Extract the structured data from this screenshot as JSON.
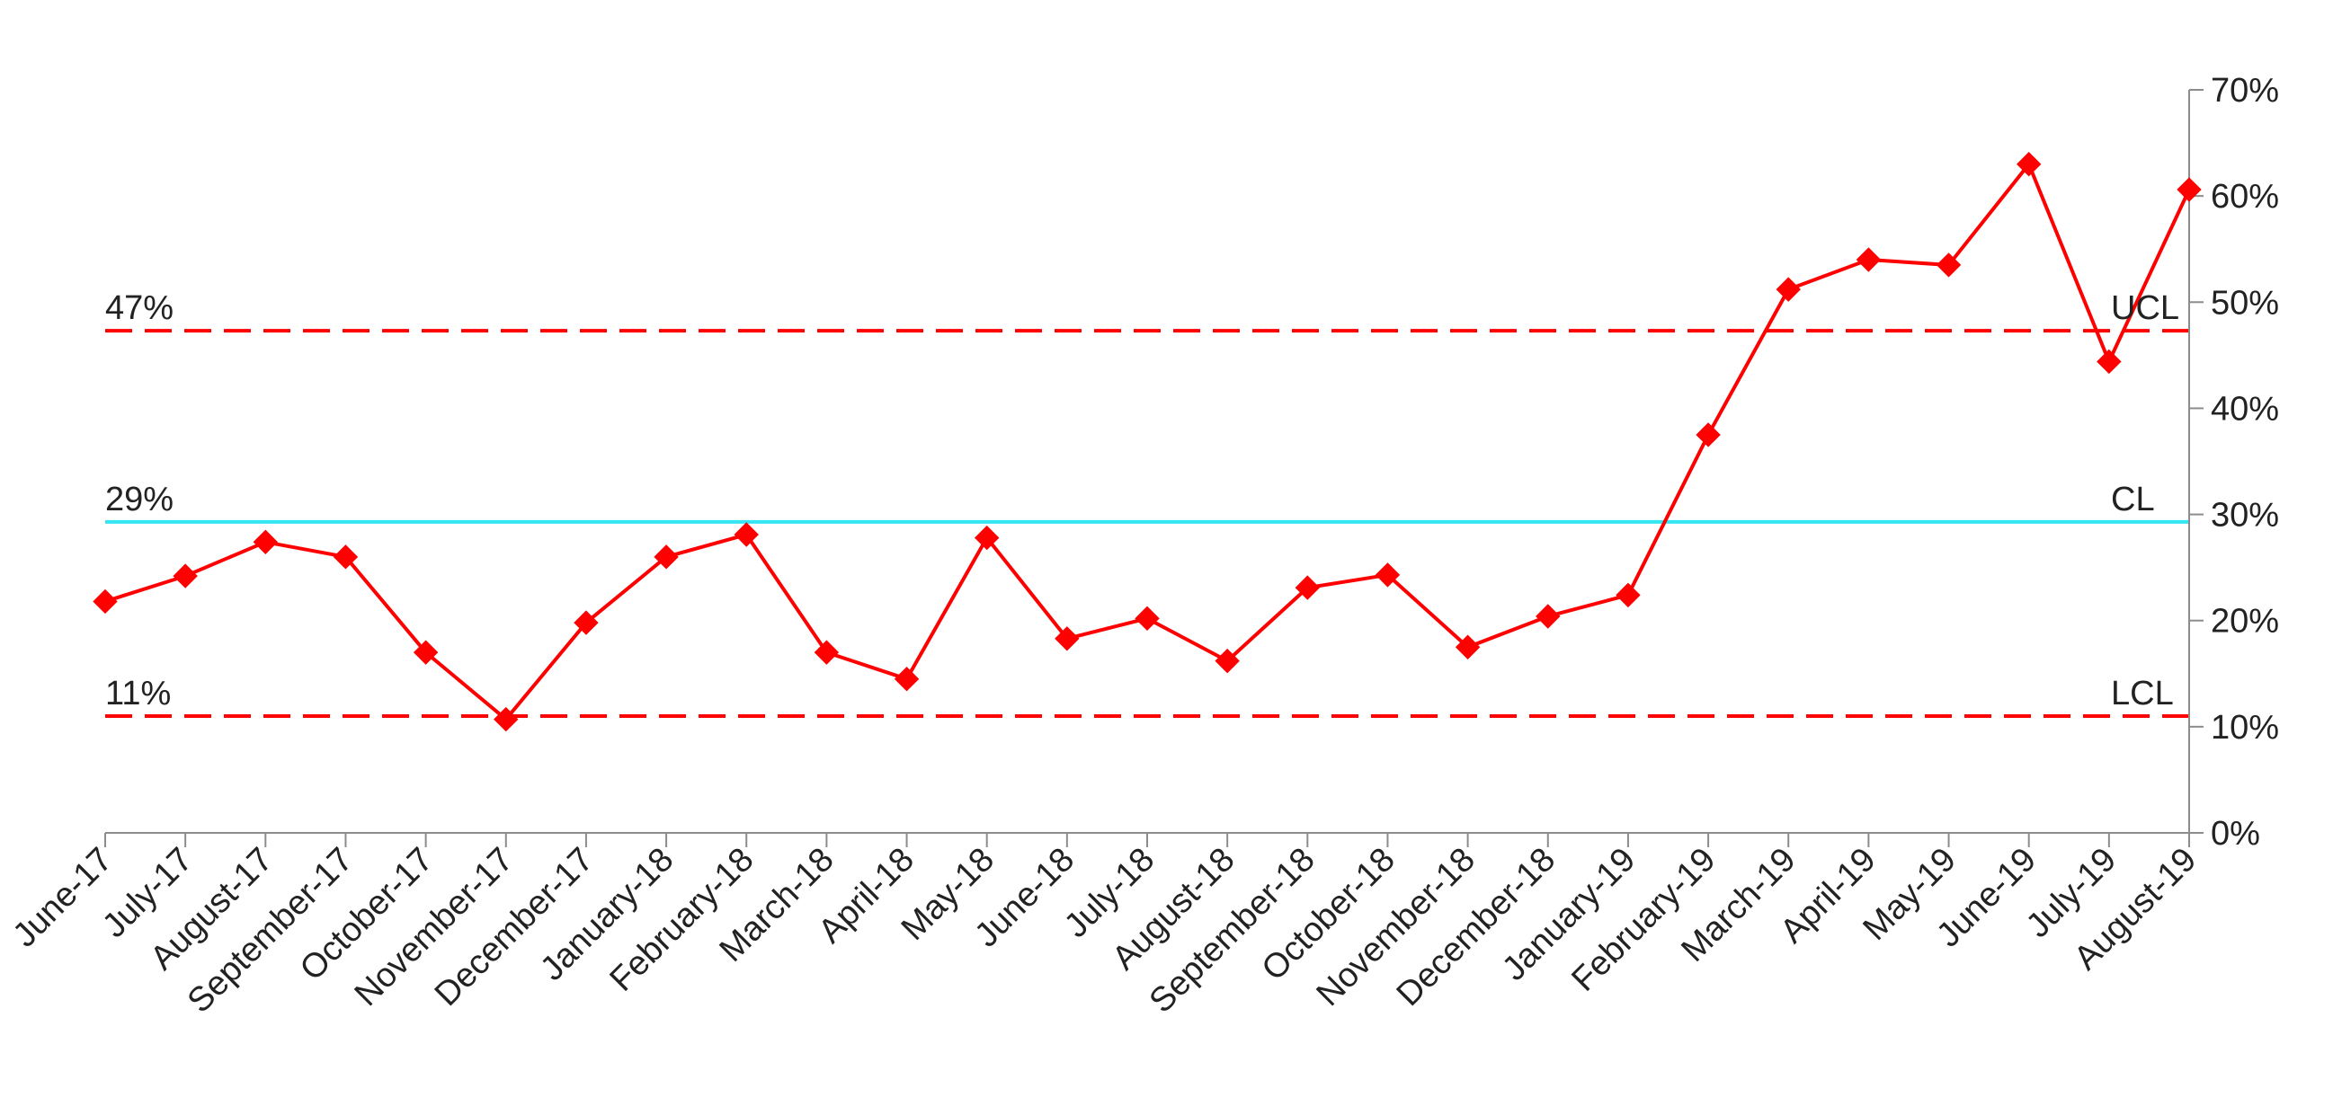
{
  "chart_data": {
    "type": "line",
    "title": "",
    "xlabel": "",
    "ylabel": "",
    "categories": [
      "June-17",
      "July-17",
      "August-17",
      "September-17",
      "October-17",
      "November-17",
      "December-17",
      "January-18",
      "February-18",
      "March-18",
      "April-18",
      "May-18",
      "June-18",
      "July-18",
      "August-18",
      "September-18",
      "October-18",
      "November-18",
      "December-18",
      "January-19",
      "February-19",
      "March-19",
      "April-19",
      "May-19",
      "June-19",
      "July-19",
      "August-19"
    ],
    "series": [
      {
        "color": "#ff0000",
        "marker": "diamond",
        "values": [
          0.218,
          0.242,
          0.274,
          0.26,
          0.17,
          0.107,
          0.198,
          0.26,
          0.281,
          0.17,
          0.145,
          0.278,
          0.183,
          0.202,
          0.162,
          0.231,
          0.243,
          0.175,
          0.204,
          0.224,
          0.375,
          0.512,
          0.54,
          0.535,
          0.63,
          0.444,
          0.606
        ]
      }
    ],
    "yaxis": {
      "ylim": [
        0,
        0.7
      ],
      "ticks": [
        0,
        0.1,
        0.2,
        0.3,
        0.4,
        0.5,
        0.6,
        0.7
      ],
      "tick_labels": [
        "0%",
        "10%",
        "20%",
        "30%",
        "40%",
        "50%",
        "60%",
        "70%"
      ],
      "position": "right"
    },
    "control_lines": [
      {
        "id": "ucl",
        "value": 0.473,
        "value_label": "47%",
        "tag": "UCL",
        "color": "#ff0000",
        "style": "dashed"
      },
      {
        "id": "cl",
        "value": 0.293,
        "value_label": "29%",
        "tag": "CL",
        "color": "#33e6f2",
        "style": "solid"
      },
      {
        "id": "lcl",
        "value": 0.11,
        "value_label": "11%",
        "tag": "LCL",
        "color": "#ff0000",
        "style": "dashed"
      }
    ],
    "grid": false,
    "legend": "none"
  }
}
